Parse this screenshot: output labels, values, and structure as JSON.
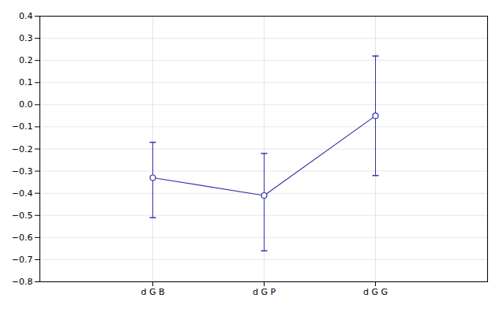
{
  "chart_data": {
    "type": "line",
    "categories": [
      "d G B",
      "d G P",
      "d G G"
    ],
    "values": [
      -0.33,
      -0.41,
      -0.05
    ],
    "errors_up": [
      0.16,
      0.19,
      0.27
    ],
    "errors_down": [
      0.18,
      0.25,
      0.27
    ],
    "color": "#3333aa",
    "marker": "circle",
    "ylim": [
      -0.8,
      0.4
    ],
    "yticks": [
      -0.8,
      -0.7,
      -0.6,
      -0.5,
      -0.4,
      -0.3,
      -0.2,
      -0.1,
      {
        "value": 0,
        "label": "0.0"
      },
      0.1,
      0.2,
      0.3,
      0.4
    ],
    "grid": true
  }
}
